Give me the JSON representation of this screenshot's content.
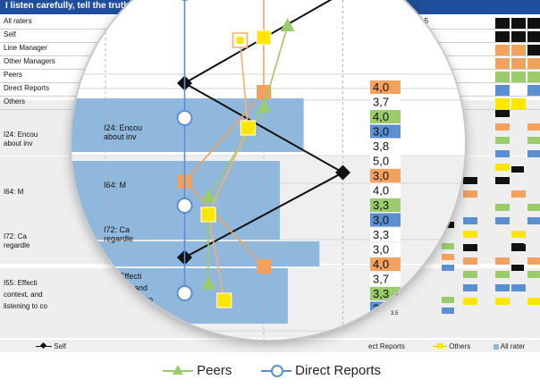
{
  "header": {
    "title": "I listen carefully, tell the truth, and explain the why."
  },
  "raters": [
    {
      "label": "All raters",
      "score": "3,5"
    },
    {
      "label": "Self",
      "score": "3,8"
    },
    {
      "label": "Line Manager",
      "score": "3,5"
    },
    {
      "label": "Other Managers",
      "score": "3,8"
    },
    {
      "label": "Peers",
      "score": "3,8"
    },
    {
      "label": "Direct Reports",
      "score": "3,1"
    },
    {
      "label": "Others",
      "score": "3,6"
    }
  ],
  "questions": [
    {
      "label": "I24: Encou",
      "label2": "about inv"
    },
    {
      "label": "I64: M",
      "label2": ""
    },
    {
      "label": "I72: Ca",
      "label2": "regardle"
    },
    {
      "label": "I55: Effecti",
      "label2": "context, and",
      "label3": "listening to co"
    }
  ],
  "lens_labels": [
    {
      "text": "I24: Encou",
      "lines": [
        "I24: Encou",
        "about inv"
      ]
    },
    {
      "text": "I64: M",
      "lines": [
        "I64: M"
      ]
    },
    {
      "text": "I72: Ca",
      "lines": [
        "I72: Ca",
        "regardle"
      ]
    },
    {
      "text": "I55: Effecti",
      "lines": [
        "I55: Effecti",
        "context, and",
        "listening to co"
      ]
    }
  ],
  "score_column": [
    {
      "value": "4,0",
      "color": "#f2a25c"
    },
    {
      "value": "3,7",
      "color": "#ffffff"
    },
    {
      "value": "4,0",
      "color": "#9ccb6c"
    },
    {
      "value": "3,0",
      "color": "#5b8fd1"
    },
    {
      "value": "3,8",
      "color": "#ffffff"
    },
    {
      "value": "5,0",
      "color": "#ffffff"
    },
    {
      "value": "3,0",
      "color": "#f2a25c"
    },
    {
      "value": "4,0",
      "color": "#ffffff"
    },
    {
      "value": "3,3",
      "color": "#9ccb6c"
    },
    {
      "value": "3,0",
      "color": "#5b8fd1"
    },
    {
      "value": "3,3",
      "color": "#ffffff"
    },
    {
      "value": "3,0",
      "color": "#ffffff"
    },
    {
      "value": "4,0",
      "color": "#f2a25c"
    },
    {
      "value": "3,7",
      "color": "#ffffff"
    },
    {
      "value": "3,3",
      "color": "#9ccb6c"
    },
    {
      "value": "3,0",
      "color": "#5b8fd1"
    },
    {
      "value": "3,",
      "color": "#ffffff"
    }
  ],
  "tiny_scores": [
    "4,0",
    "3,0",
    "3,6",
    "4,0",
    "3,3",
    "3,0",
    "4,0",
    "3,7",
    "3,3",
    "3,0",
    "3,5"
  ],
  "axis": {
    "ticks": [
      "2",
      "3",
      "4",
      "5"
    ]
  },
  "legend": {
    "self": "Self",
    "line_manager": "Line Manager",
    "peers": "Peers",
    "direct_reports": "Direct Reports",
    "direct_reports_small": "ect Reports",
    "others": "Others",
    "all_raters": "All rater"
  },
  "colors": {
    "banner": "#1f4e9c",
    "all_raters": "#8fb8dc",
    "self": "#111111",
    "line_manager": "#f2a25c",
    "peers": "#9ccb6c",
    "direct_reports": "#5b8fd1",
    "others": "#ffe600"
  },
  "chart_data": {
    "type": "line",
    "x_axis": {
      "ticks": [
        2,
        3,
        4,
        5
      ]
    },
    "categories": [
      "I24",
      "I64",
      "I72",
      "I55"
    ],
    "series": [
      {
        "name": "All raters",
        "kind": "bar",
        "values": [
          3.6,
          3.3,
          3.8,
          3.4
        ]
      },
      {
        "name": "Self",
        "values": [
          3.0,
          5.0,
          3.0,
          null
        ]
      },
      {
        "name": "Line Manager",
        "values": [
          4.0,
          3.0,
          4.0,
          null
        ]
      },
      {
        "name": "Peers",
        "values": [
          4.0,
          3.3,
          3.3,
          null
        ]
      },
      {
        "name": "Direct Reports",
        "values": [
          3.0,
          3.0,
          3.0,
          null
        ]
      },
      {
        "name": "Others",
        "values": [
          3.8,
          3.3,
          3.3,
          null
        ]
      }
    ]
  }
}
